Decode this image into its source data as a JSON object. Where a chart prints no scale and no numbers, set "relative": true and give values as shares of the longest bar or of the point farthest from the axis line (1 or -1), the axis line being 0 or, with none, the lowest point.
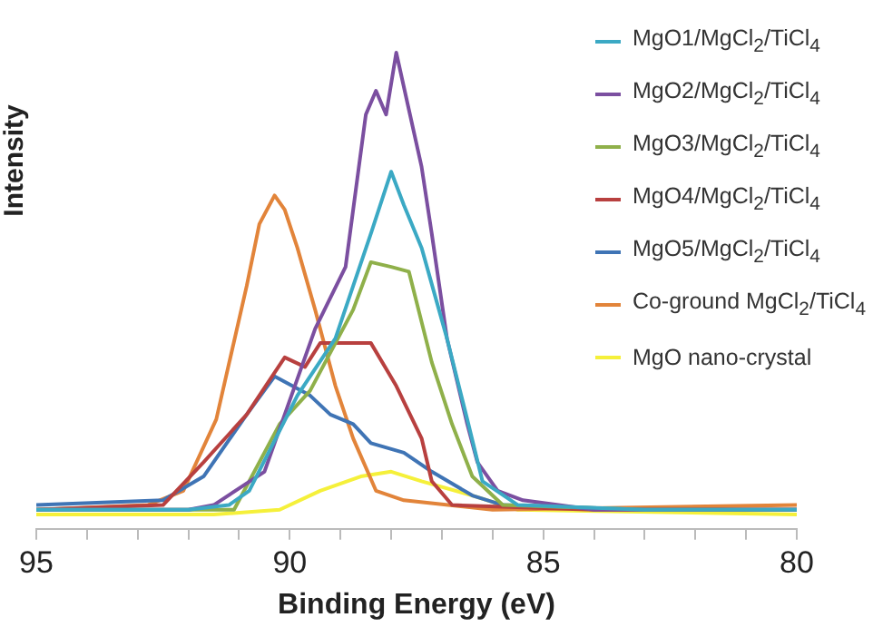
{
  "chart_data": {
    "type": "line",
    "relative": true,
    "xlabel": "Binding Energy (eV)",
    "ylabel": "Intensity",
    "xlim": [
      95,
      80
    ],
    "xticks": [
      95,
      {
        "value": 94,
        "label": null
      },
      {
        "value": 93,
        "label": null
      },
      {
        "value": 92,
        "label": null
      },
      {
        "value": 91,
        "label": null
      },
      90,
      {
        "value": 89,
        "label": null
      },
      {
        "value": 88,
        "label": null
      },
      {
        "value": 87,
        "label": null
      },
      {
        "value": 86,
        "label": null
      },
      85,
      {
        "value": 84,
        "label": null
      },
      {
        "value": 83,
        "label": null
      },
      {
        "value": 82,
        "label": null
      },
      {
        "value": 81,
        "label": null
      },
      80
    ],
    "grid": false,
    "legend": "top right",
    "marker": "none",
    "line_style": "solid",
    "series": [
      {
        "name": "MgO1/MgCl$_{2}$/TiCl$_{4}$",
        "color": "#3ba9c4",
        "x": [
          95,
          92,
          91.2,
          90.8,
          89.85,
          89.1,
          88.75,
          88.4,
          88,
          87.75,
          87.4,
          86.9,
          86.5,
          86.2,
          85.5,
          83,
          80
        ],
        "values": [
          0.04,
          0.04,
          0.05,
          0.08,
          0.28,
          0.4,
          0.51,
          0.62,
          0.75,
          0.68,
          0.59,
          0.4,
          0.23,
          0.1,
          0.05,
          0.04,
          0.04
        ]
      },
      {
        "name": "MgO2/MgCl$_{2}$/TiCl$_{4}$",
        "color": "#7b4fa0",
        "x": [
          95,
          92,
          91.5,
          90.5,
          89.5,
          88.9,
          88.5,
          88.3,
          88.1,
          87.9,
          87.65,
          87.4,
          87.2,
          86.9,
          86.5,
          86.3,
          85.9,
          85.4,
          84,
          80
        ],
        "values": [
          0.04,
          0.04,
          0.05,
          0.12,
          0.42,
          0.55,
          0.87,
          0.92,
          0.87,
          1,
          0.88,
          0.76,
          0.62,
          0.4,
          0.22,
          0.14,
          0.08,
          0.06,
          0.04,
          0.04
        ]
      },
      {
        "name": "MgO3/MgCl$_{2}$/TiCl$_{4}$",
        "color": "#8fb04a",
        "x": [
          95,
          92,
          91.1,
          90.2,
          89.6,
          88.75,
          88.4,
          88,
          87.65,
          87.2,
          86.8,
          86.4,
          85.8,
          83,
          80
        ],
        "values": [
          0.04,
          0.04,
          0.04,
          0.22,
          0.29,
          0.46,
          0.56,
          0.55,
          0.54,
          0.35,
          0.22,
          0.11,
          0.05,
          0.04,
          0.04
        ]
      },
      {
        "name": "MgO4/MgCl$_{2}$/TiCl$_{4}$",
        "color": "#b8403f",
        "x": [
          95,
          92.5,
          91.7,
          90.85,
          90.1,
          89.7,
          89.4,
          88.9,
          88.4,
          87.9,
          87.4,
          87.2,
          86.8,
          84,
          80
        ],
        "values": [
          0.04,
          0.05,
          0.14,
          0.24,
          0.36,
          0.34,
          0.39,
          0.39,
          0.39,
          0.3,
          0.19,
          0.1,
          0.05,
          0.04,
          0.04
        ]
      },
      {
        "name": "MgO5/MgCl$_{2}$/TiCl$_{4}$",
        "color": "#3f74b5",
        "x": [
          95,
          92.5,
          91.7,
          90.85,
          90.3,
          89.95,
          89.6,
          89.2,
          88.75,
          88.4,
          87.75,
          87.2,
          86.4,
          85.8,
          83,
          80
        ],
        "values": [
          0.05,
          0.06,
          0.11,
          0.24,
          0.32,
          0.3,
          0.28,
          0.24,
          0.22,
          0.18,
          0.16,
          0.12,
          0.07,
          0.05,
          0.04,
          0.04
        ]
      },
      {
        "name": "Co-ground MgCl$_{2}$/TiCl$_{4}$",
        "color": "#e2843a",
        "x": [
          95,
          92.8,
          92.1,
          91.45,
          90.85,
          90.6,
          90.3,
          90.1,
          89.85,
          89.5,
          89.1,
          88.75,
          88.3,
          87.75,
          86,
          80
        ],
        "values": [
          0.04,
          0.05,
          0.08,
          0.23,
          0.51,
          0.64,
          0.7,
          0.67,
          0.59,
          0.46,
          0.3,
          0.19,
          0.08,
          0.06,
          0.04,
          0.05
        ]
      },
      {
        "name": "MgO nano-crystal",
        "color": "#f5f03a",
        "x": [
          95,
          91.5,
          90.2,
          89.4,
          88.6,
          88,
          87.4,
          86.4,
          85.5,
          80
        ],
        "values": [
          0.03,
          0.03,
          0.04,
          0.08,
          0.11,
          0.12,
          0.1,
          0.07,
          0.04,
          0.03
        ]
      }
    ]
  }
}
